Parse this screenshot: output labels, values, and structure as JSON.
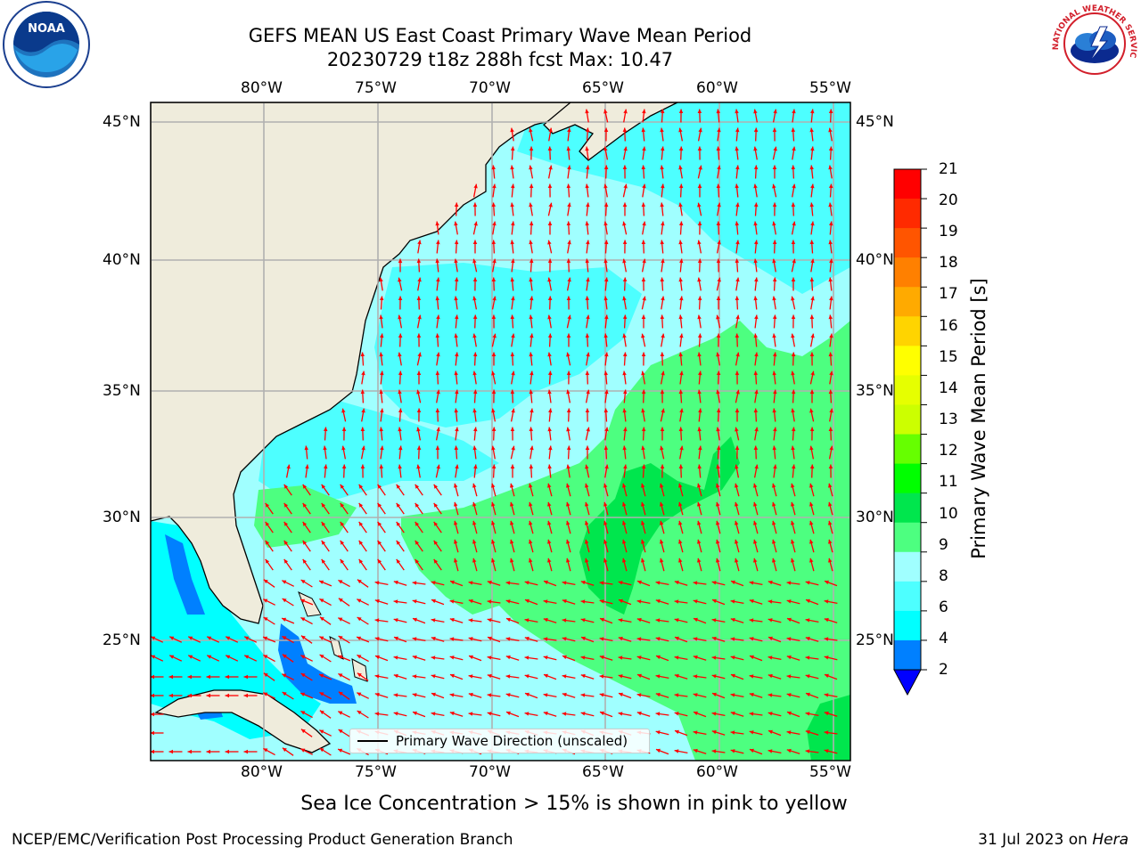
{
  "title": {
    "line1": "GEFS MEAN US East Coast Primary Wave Mean Period",
    "line2": "20230729 t18z 288h fcst   Max: 10.47"
  },
  "map": {
    "lon_labels": [
      "80°W",
      "75°W",
      "70°W",
      "65°W",
      "60°W",
      "55°W"
    ],
    "lat_labels": [
      "45°N",
      "40°N",
      "35°N",
      "30°N",
      "25°N"
    ],
    "land_color": "#efecdc",
    "grid_color": "#b0b0b0",
    "arrow_color": "#ff0000"
  },
  "colorbar": {
    "label": "Primary Wave Mean Period [s]",
    "ticks": [
      "21",
      "20",
      "19",
      "18",
      "17",
      "16",
      "15",
      "14",
      "13",
      "12",
      "11",
      "10",
      "9",
      "8",
      "6",
      "4",
      "2"
    ],
    "colors_top_to_bottom": [
      "#ff0000",
      "#ff2a00",
      "#ff5500",
      "#ff8000",
      "#ffaa00",
      "#ffd400",
      "#ffff00",
      "#e6ff00",
      "#ccff00",
      "#66ff00",
      "#00ff00",
      "#00e64d",
      "#4dff80",
      "#a0ffff",
      "#4dffff",
      "#00ffff",
      "#0080ff"
    ],
    "under_color": "#0000ff"
  },
  "legend": {
    "label": "Primary Wave Direction (unscaled)"
  },
  "subnote": "Sea Ice Concentration > 15% is shown in pink to yellow",
  "footer": {
    "left": "NCEP/EMC/Verification Post Processing Product Generation Branch",
    "date": "31 Jul 2023 on ",
    "machine": "Hera"
  },
  "logos": {
    "noaa": {
      "text": "NOAA"
    },
    "nws": {
      "text": "NATIONAL WEATHER SERVICE"
    }
  }
}
